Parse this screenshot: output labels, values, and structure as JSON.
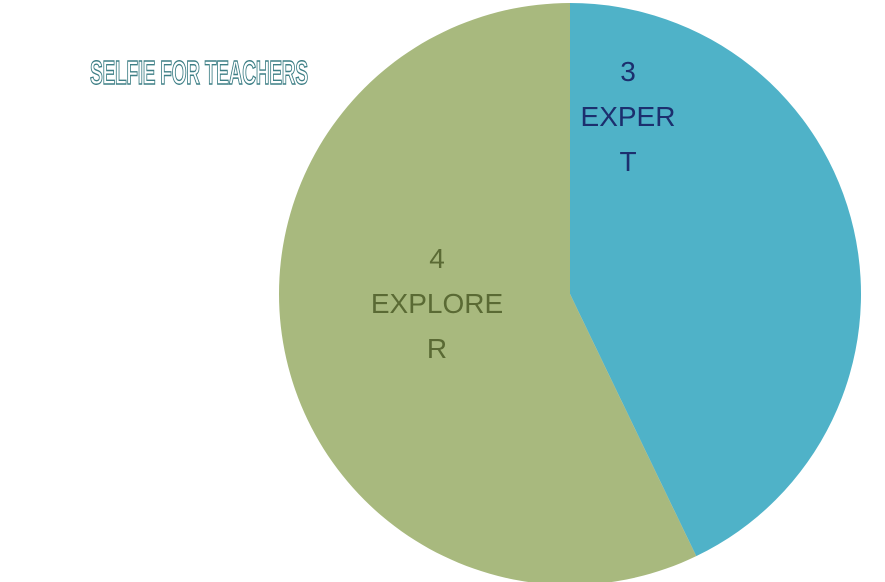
{
  "brand": {
    "text": "SELFIE FOR TEACHERS"
  },
  "chart_data": {
    "type": "pie",
    "title": "",
    "start_angle_deg": 0,
    "slices": [
      {
        "value": 3,
        "label": "EXPERT",
        "label_lines": [
          "3",
          "EXPER",
          "T"
        ],
        "color": "#4fb2c8",
        "label_color": "#1c2f6e"
      },
      {
        "value": 4,
        "label": "EXPLORER",
        "label_lines": [
          "4",
          "EXPLORE",
          "R"
        ],
        "color": "#a8b97e",
        "label_color": "#5a6a34"
      }
    ]
  }
}
